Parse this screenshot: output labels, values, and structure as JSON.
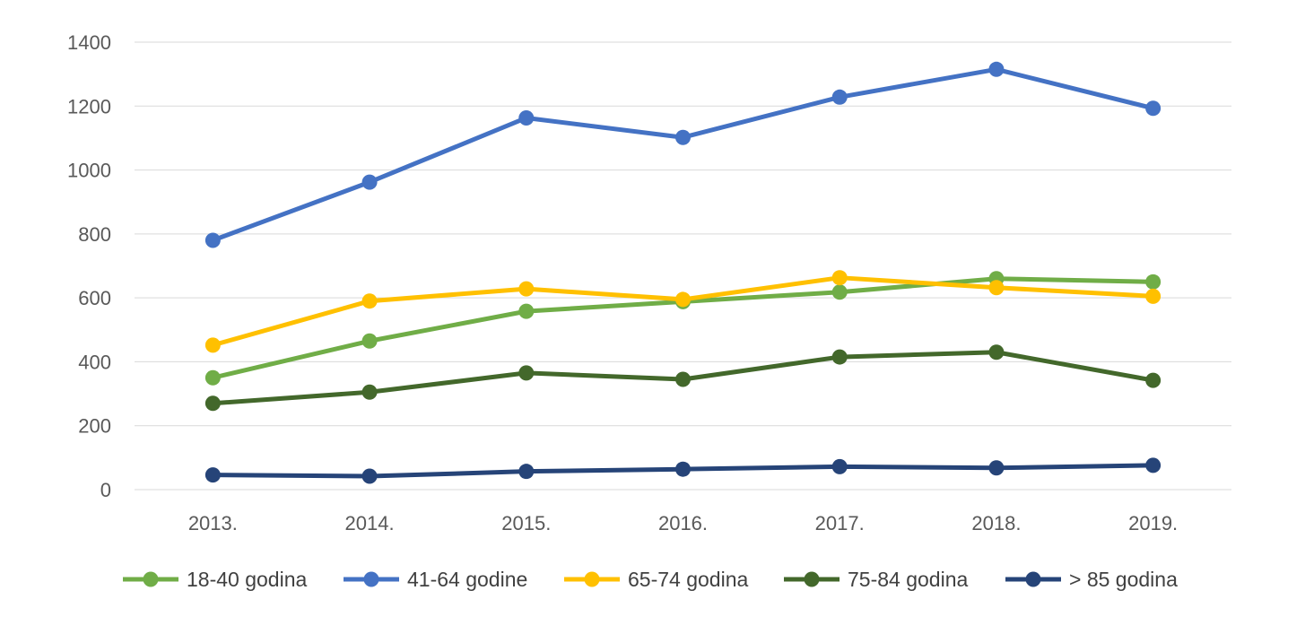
{
  "chart_data": {
    "type": "line",
    "title": "",
    "xlabel": "",
    "ylabel": "",
    "categories": [
      "2013.",
      "2014.",
      "2015.",
      "2016.",
      "2017.",
      "2018.",
      "2019."
    ],
    "ylim": [
      0,
      1400
    ],
    "yticks": [
      0,
      200,
      400,
      600,
      800,
      1000,
      1200,
      1400
    ],
    "grid": true,
    "legend_position": "bottom",
    "series": [
      {
        "name": "18-40 godina",
        "color": "#70AD47",
        "values": [
          350,
          465,
          558,
          588,
          618,
          660,
          650
        ]
      },
      {
        "name": "41-64 godine",
        "color": "#4472C4",
        "values": [
          780,
          962,
          1163,
          1102,
          1228,
          1315,
          1193
        ]
      },
      {
        "name": "65-74 godina",
        "color": "#FFC000",
        "values": [
          452,
          590,
          628,
          595,
          663,
          632,
          605
        ]
      },
      {
        "name": "75-84 godina",
        "color": "#43682B",
        "values": [
          270,
          305,
          365,
          345,
          415,
          430,
          342
        ]
      },
      {
        "name": "> 85 godina",
        "color": "#264478",
        "values": [
          46,
          42,
          57,
          64,
          72,
          68,
          76
        ]
      }
    ]
  }
}
